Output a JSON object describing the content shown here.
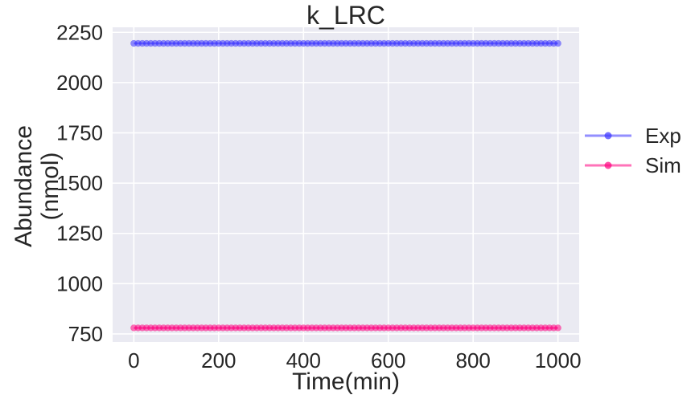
{
  "chart_data": {
    "type": "line",
    "title": "k_LRC",
    "xlabel": "Time(min)",
    "ylabel_lines": [
      "Abundance",
      "(nmol)"
    ],
    "xlim": [
      -50,
      1050
    ],
    "ylim": [
      710,
      2275
    ],
    "x_ticks": [
      0,
      200,
      400,
      600,
      800,
      1000
    ],
    "y_ticks": [
      750,
      1000,
      1250,
      1500,
      1750,
      2000,
      2250
    ],
    "grid": true,
    "legend_position": "outside-right",
    "x_start": 0,
    "x_end": 1000,
    "n_points": 101,
    "series": [
      {
        "name": "Exp",
        "constant_value": 2195,
        "color": "#3b33ff",
        "marker": "circle"
      },
      {
        "name": "Sim",
        "constant_value": 780,
        "color": "#ff007f",
        "marker": "circle"
      }
    ]
  },
  "colors": {
    "plot_background": "#eaeaf2",
    "grid": "#ffffff",
    "text": "#262626"
  }
}
